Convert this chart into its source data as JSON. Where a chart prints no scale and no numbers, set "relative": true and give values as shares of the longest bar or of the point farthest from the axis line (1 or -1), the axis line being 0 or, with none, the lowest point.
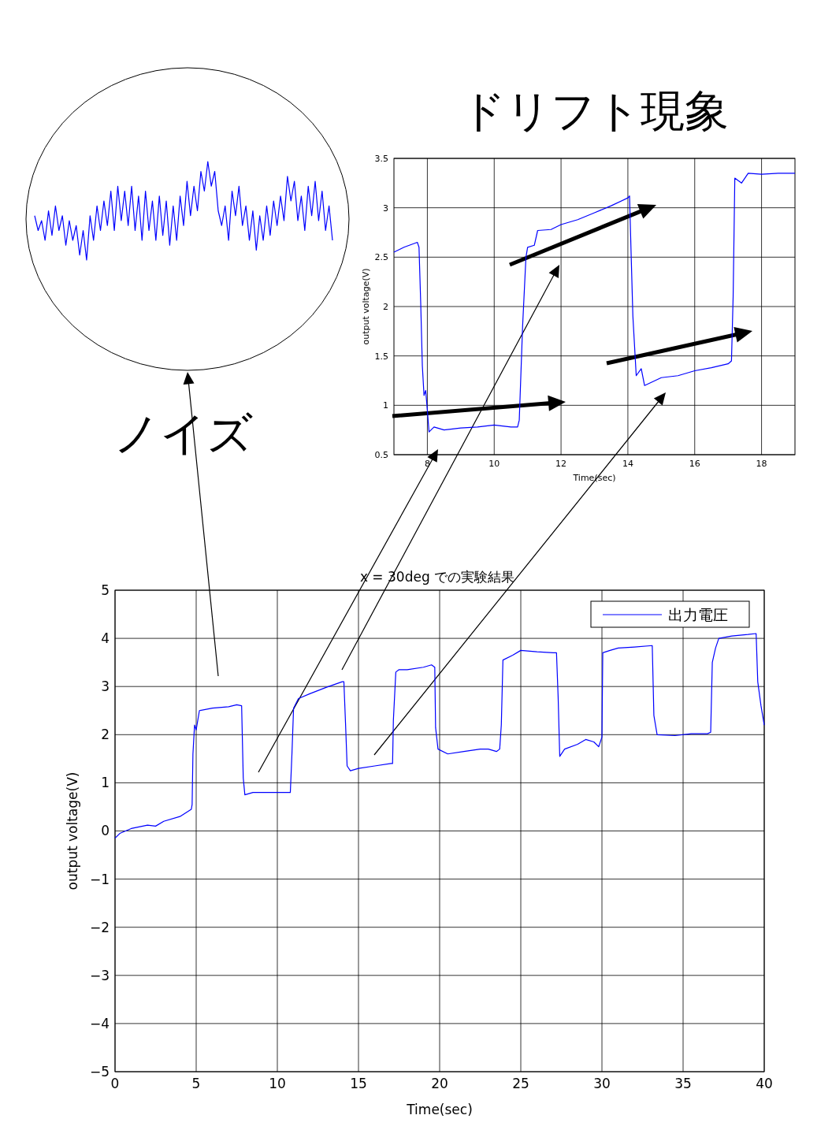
{
  "chart_data": [
    {
      "type": "line",
      "title": "x = 30deg での実験結果",
      "xlabel": "Time(sec)",
      "ylabel": "output voltage(V)",
      "xlim": [
        0,
        40
      ],
      "ylim": [
        -5,
        5
      ],
      "xticks": [
        0,
        5,
        10,
        15,
        20,
        25,
        30,
        35,
        40
      ],
      "yticks": [
        -5,
        -4,
        -3,
        -2,
        -1,
        0,
        1,
        2,
        3,
        4,
        5
      ],
      "grid": true,
      "legend": "top right",
      "x": [
        0,
        0.3,
        1,
        2,
        2.5,
        3,
        4,
        4.7,
        4.75,
        4.8,
        4.9,
        5.0,
        5.2,
        6,
        7,
        7.5,
        7.8,
        7.9,
        8.0,
        8.5,
        9.5,
        10.5,
        10.8,
        10.9,
        11.0,
        11.3,
        12,
        13,
        14,
        14.1,
        14.2,
        14.3,
        14.5,
        15,
        16,
        17,
        17.1,
        17.15,
        17.3,
        17.5,
        18,
        19,
        19.5,
        19.7,
        19.75,
        19.9,
        20.5,
        21.5,
        22.5,
        23,
        23.5,
        23.7,
        23.8,
        23.9,
        24.5,
        25,
        26,
        27,
        27.2,
        27.3,
        27.4,
        27.7,
        28.5,
        29,
        29.5,
        29.8,
        30,
        30.05,
        30.5,
        31,
        32,
        33.1,
        33.2,
        33.4,
        34.5,
        35.5,
        36.5,
        36.7,
        36.8,
        37,
        37.2,
        38,
        39,
        39.5,
        39.6,
        39.8,
        40
      ],
      "series": [
        {
          "name": "出力電圧",
          "color": "#0000ff",
          "values": [
            -0.15,
            -0.05,
            0.05,
            0.12,
            0.1,
            0.2,
            0.3,
            0.45,
            0.55,
            1.6,
            2.2,
            2.1,
            2.5,
            2.55,
            2.58,
            2.62,
            2.6,
            1.1,
            0.75,
            0.8,
            0.8,
            0.8,
            0.8,
            1.6,
            2.55,
            2.75,
            2.85,
            2.98,
            3.1,
            3.1,
            2.25,
            1.35,
            1.25,
            1.3,
            1.35,
            1.4,
            1.4,
            2.3,
            3.3,
            3.35,
            3.35,
            3.4,
            3.45,
            3.4,
            2.15,
            1.7,
            1.6,
            1.65,
            1.7,
            1.7,
            1.65,
            1.7,
            2.2,
            3.55,
            3.65,
            3.75,
            3.72,
            3.7,
            3.7,
            2.8,
            1.55,
            1.7,
            1.8,
            1.9,
            1.85,
            1.75,
            1.95,
            3.7,
            3.75,
            3.8,
            3.82,
            3.85,
            2.4,
            2.0,
            1.98,
            2.02,
            2.02,
            2.05,
            3.5,
            3.8,
            4.0,
            4.05,
            4.08,
            4.1,
            3.1,
            2.6,
            2.2
          ]
        }
      ]
    },
    {
      "type": "line",
      "title": "ドリフト現象",
      "xlabel": "Time(sec)",
      "ylabel": "output voltage(V)",
      "xlim": [
        7,
        19
      ],
      "ylim": [
        0.5,
        3.5
      ],
      "xticks": [
        8,
        10,
        12,
        14,
        16,
        18
      ],
      "yticks": [
        0.5,
        1,
        1.5,
        2,
        2.5,
        3,
        3.5
      ],
      "grid": true,
      "x": [
        7,
        7.3,
        7.7,
        7.75,
        7.8,
        7.85,
        7.9,
        7.95,
        8.0,
        8.05,
        8.2,
        8.5,
        9,
        9.5,
        10,
        10.5,
        10.7,
        10.75,
        10.85,
        10.95,
        11,
        11.2,
        11.3,
        11.7,
        12,
        12.5,
        13,
        13.5,
        14,
        14.05,
        14.1,
        14.15,
        14.25,
        14.4,
        14.5,
        15,
        15.5,
        16,
        16.5,
        17,
        17.1,
        17.15,
        17.2,
        17.4,
        17.6,
        18,
        18.5,
        19
      ],
      "series": [
        {
          "color": "#0000ff",
          "values": [
            2.55,
            2.6,
            2.65,
            2.6,
            2.05,
            1.4,
            1.1,
            1.15,
            0.95,
            0.73,
            0.78,
            0.75,
            0.77,
            0.78,
            0.8,
            0.78,
            0.78,
            0.85,
            1.8,
            2.5,
            2.6,
            2.62,
            2.77,
            2.78,
            2.83,
            2.88,
            2.95,
            3.02,
            3.1,
            3.12,
            2.5,
            1.9,
            1.3,
            1.37,
            1.2,
            1.28,
            1.3,
            1.35,
            1.38,
            1.42,
            1.45,
            2.1,
            3.3,
            3.25,
            3.35,
            3.34,
            3.35,
            3.35
          ]
        }
      ]
    },
    {
      "type": "line",
      "relative": true,
      "annotations": [
        "ノイズ"
      ],
      "categories": [
        null,
        null,
        null,
        null,
        null,
        null,
        null,
        null,
        null,
        null,
        null,
        null,
        null,
        null,
        null,
        null,
        null,
        null,
        null,
        null,
        null,
        null,
        null,
        null,
        null,
        null,
        null,
        null,
        null,
        null,
        null,
        null,
        null,
        null,
        null,
        null,
        null,
        null,
        null,
        null,
        null,
        null,
        null,
        null,
        null,
        null,
        null,
        null,
        null,
        null,
        null,
        null,
        null,
        null,
        null,
        null,
        null,
        null,
        null,
        null,
        null,
        null,
        null,
        null,
        null,
        null,
        null,
        null,
        null,
        null,
        null,
        null,
        null,
        null,
        null,
        null,
        null,
        null,
        null,
        null,
        null,
        null,
        null,
        null,
        null,
        null,
        null
      ],
      "series": [
        {
          "color": "#0000ff",
          "values": [
            0.45,
            0.3,
            0.4,
            0.2,
            0.5,
            0.25,
            0.55,
            0.3,
            0.45,
            0.15,
            0.4,
            0.2,
            0.35,
            0.05,
            0.3,
            0.0,
            0.45,
            0.2,
            0.55,
            0.3,
            0.6,
            0.35,
            0.7,
            0.3,
            0.75,
            0.4,
            0.7,
            0.35,
            0.75,
            0.3,
            0.65,
            0.2,
            0.7,
            0.3,
            0.6,
            0.2,
            0.65,
            0.25,
            0.6,
            0.15,
            0.55,
            0.2,
            0.65,
            0.35,
            0.8,
            0.45,
            0.75,
            0.5,
            0.9,
            0.7,
            1.0,
            0.75,
            0.9,
            0.5,
            0.35,
            0.55,
            0.2,
            0.7,
            0.45,
            0.75,
            0.35,
            0.55,
            0.2,
            0.5,
            0.1,
            0.45,
            0.2,
            0.55,
            0.25,
            0.6,
            0.35,
            0.65,
            0.4,
            0.85,
            0.6,
            0.8,
            0.4,
            0.65,
            0.3,
            0.75,
            0.45,
            0.8,
            0.4,
            0.7,
            0.3,
            0.55,
            0.2
          ]
        }
      ]
    }
  ]
}
